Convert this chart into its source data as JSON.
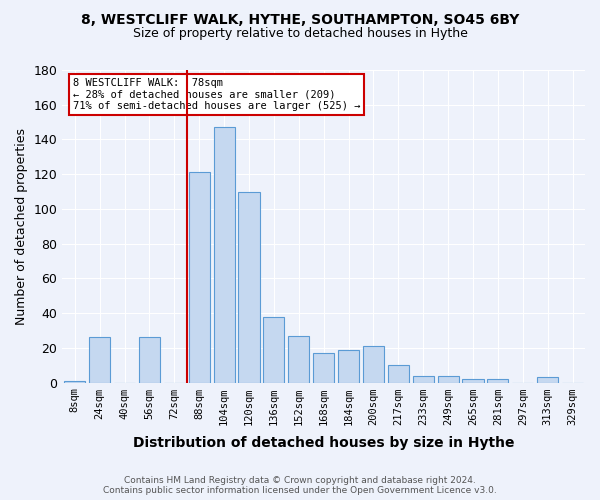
{
  "title_line1": "8, WESTCLIFF WALK, HYTHE, SOUTHAMPTON, SO45 6BY",
  "title_line2": "Size of property relative to detached houses in Hythe",
  "xlabel": "Distribution of detached houses by size in Hythe",
  "ylabel": "Number of detached properties",
  "bar_color": "#c5d8f0",
  "bar_edge_color": "#5b9bd5",
  "bins": [
    "8sqm",
    "24sqm",
    "40sqm",
    "56sqm",
    "72sqm",
    "88sqm",
    "104sqm",
    "120sqm",
    "136sqm",
    "152sqm",
    "168sqm",
    "184sqm",
    "200sqm",
    "217sqm",
    "233sqm",
    "249sqm",
    "265sqm",
    "281sqm",
    "297sqm",
    "313sqm",
    "329sqm"
  ],
  "values": [
    1,
    26,
    0,
    26,
    0,
    121,
    147,
    110,
    38,
    27,
    17,
    19,
    21,
    10,
    4,
    4,
    2,
    2,
    0,
    3,
    0
  ],
  "vline_x": 4.5,
  "vline_color": "#cc0000",
  "annotation_text": "8 WESTCLIFF WALK:  78sqm\n← 28% of detached houses are smaller (209)\n71% of semi-detached houses are larger (525) →",
  "annotation_box_color": "#ffffff",
  "annotation_box_edge_color": "#cc0000",
  "footer_text": "Contains HM Land Registry data © Crown copyright and database right 2024.\nContains public sector information licensed under the Open Government Licence v3.0.",
  "ylim": [
    0,
    180
  ],
  "yticks": [
    0,
    20,
    40,
    60,
    80,
    100,
    120,
    140,
    160,
    180
  ],
  "background_color": "#eef2fb",
  "grid_color": "#ffffff"
}
